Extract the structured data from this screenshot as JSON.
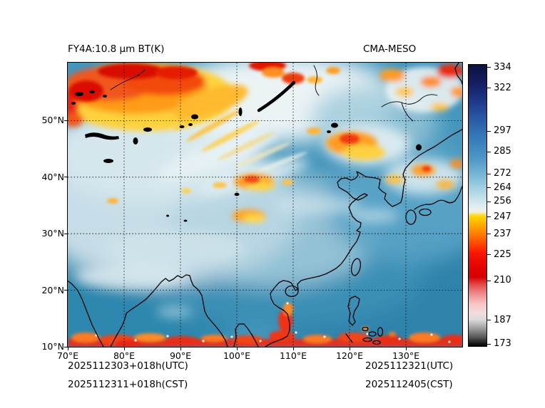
{
  "titles": {
    "left": "FY4A:10.8 μm BT(K)",
    "right": "CMA-MESO"
  },
  "footer": {
    "left_line1": "2025112303+018h(UTC)",
    "left_line2": "2025112311+018h(CST)",
    "right_line1": "2025112321(UTC)",
    "right_line2": "2025112405(CST)"
  },
  "map": {
    "lat_ticks": [
      {
        "deg": 50,
        "label": "50°N"
      },
      {
        "deg": 40,
        "label": "40°N"
      },
      {
        "deg": 30,
        "label": "30°N"
      },
      {
        "deg": 20,
        "label": "20°N"
      },
      {
        "deg": 10,
        "label": "10°N"
      }
    ],
    "lon_ticks": [
      {
        "deg": 70,
        "label": "70°E"
      },
      {
        "deg": 80,
        "label": "80°E"
      },
      {
        "deg": 90,
        "label": "90°E"
      },
      {
        "deg": 100,
        "label": "100°E"
      },
      {
        "deg": 110,
        "label": "110°E"
      },
      {
        "deg": 120,
        "label": "120°E"
      },
      {
        "deg": 130,
        "label": "130°E"
      }
    ],
    "graticule_lon_deg": [
      80,
      90,
      100,
      110,
      120,
      130
    ],
    "graticule_lat_deg": [
      20,
      30,
      40,
      50
    ]
  },
  "colorbar": {
    "units": "K",
    "tick_values": [
      334,
      322,
      297,
      285,
      272,
      264,
      256,
      247,
      237,
      225,
      210,
      187,
      173
    ],
    "gradient_stops": [
      {
        "value": 336,
        "color": "#0c123f"
      },
      {
        "value": 327,
        "color": "#131c5c"
      },
      {
        "value": 318,
        "color": "#1c2e7e"
      },
      {
        "value": 308,
        "color": "#264c9d"
      },
      {
        "value": 299,
        "color": "#2e6bb0"
      },
      {
        "value": 290,
        "color": "#3a83bd"
      },
      {
        "value": 281,
        "color": "#4f97c7"
      },
      {
        "value": 272,
        "color": "#76b6d5"
      },
      {
        "value": 265,
        "color": "#9ccee1"
      },
      {
        "value": 258,
        "color": "#c3e1ea"
      },
      {
        "value": 253,
        "color": "#e2eef1"
      },
      {
        "value": 250,
        "color": "#f2f0e0"
      },
      {
        "value": 247.5,
        "color": "#ffd800"
      },
      {
        "value": 243,
        "color": "#ffb000"
      },
      {
        "value": 238,
        "color": "#ff8400"
      },
      {
        "value": 232,
        "color": "#ff4e00"
      },
      {
        "value": 226,
        "color": "#fb1500"
      },
      {
        "value": 219,
        "color": "#e80600"
      },
      {
        "value": 212,
        "color": "#d40000"
      },
      {
        "value": 207,
        "color": "#e4504e"
      },
      {
        "value": 202,
        "color": "#ef8d8d"
      },
      {
        "value": 196,
        "color": "#f8c6c6"
      },
      {
        "value": 191,
        "color": "#f3dcdc"
      },
      {
        "value": 187,
        "color": "#dcdcdc"
      },
      {
        "value": 182,
        "color": "#a0a0a0"
      },
      {
        "value": 177,
        "color": "#5a5a5a"
      },
      {
        "value": 171.5,
        "color": "#000000"
      }
    ]
  },
  "chart_data": {
    "type": "heatmap",
    "title": "FY4A:10.8 μm BT(K)",
    "subtitle": "CMA-MESO",
    "variable": "FY4A 10.8 μm infrared brightness temperature",
    "units": "K",
    "x_axis": {
      "ticks": [
        "70°E",
        "80°E",
        "90°E",
        "100°E",
        "110°E",
        "120°E",
        "130°E"
      ],
      "range_deg_east": [
        70,
        140
      ]
    },
    "y_axis": {
      "ticks": [
        "10°N",
        "20°N",
        "30°N",
        "40°N",
        "50°N"
      ],
      "range_deg_north": [
        10,
        60
      ]
    },
    "colorbar_ticks": [
      334,
      322,
      297,
      285,
      272,
      264,
      256,
      247,
      237,
      225,
      210,
      187,
      173
    ],
    "colorbar_range": [
      173,
      334
    ],
    "grid": "dotted 10-degree graticule",
    "legend_position": "right vertical colorbar",
    "annotations": [
      "2025112303+018h(UTC)",
      "2025112311+018h(CST)",
      "2025112321(UTC)",
      "2025112405(CST)"
    ],
    "features": [
      "large cold cloud shield (BT ~210-247 K, yellow/orange/red) over 70-100°E north of 48°N with cirrus streaks trailing southeast",
      "white/pale high cloud mass over 95-115°E north of 50°N with embedded cold cores near top edge",
      "cold cloud cluster over northeast China ~115-125°E, 43-47°N",
      "scattered small cold cloud patches along 33-40°N between 95-110°E",
      "cold cloud patches near Korea and Japan ~127-140°E, 38-43°N and far northeast corner",
      "deep convection band (BT < 225 K, red) along ~10-13°N across the whole domain, strongest near southern Vietnam",
      "mostly clear warm surface (BT ~270-290 K, teal blue) over South China Sea, East China Sea and India",
      "pale grey/white mid-cloud over the Tibetan Plateau and central Asia"
    ]
  }
}
